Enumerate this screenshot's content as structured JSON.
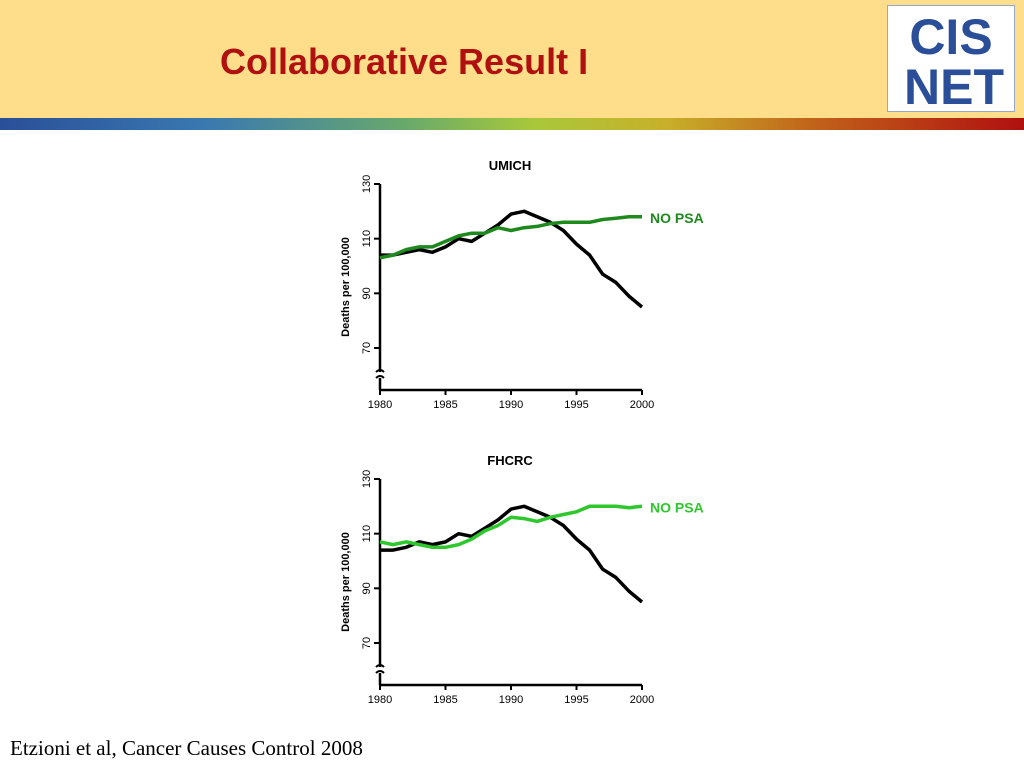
{
  "slide": {
    "title": "Collaborative Result I",
    "citation": "Etzioni et al, Cancer Causes Control 2008",
    "logo": {
      "line1": "CIS",
      "line2": "NET",
      "color": "#2a4f98"
    }
  },
  "chart_data": [
    {
      "type": "line",
      "title": "UMICH",
      "ylabel": "Deaths per 100,000",
      "xlabel": "",
      "xlim": [
        1980,
        2000
      ],
      "ylim": [
        60,
        130
      ],
      "xticks": [
        1980,
        1985,
        1990,
        1995,
        2000
      ],
      "yticks": [
        70,
        90,
        110,
        130
      ],
      "grid": false,
      "series": [
        {
          "color": "#000000",
          "x": [
            1980,
            1981,
            1982,
            1983,
            1984,
            1985,
            1986,
            1987,
            1988,
            1989,
            1990,
            1991,
            1992,
            1993,
            1994,
            1995,
            1996,
            1997,
            1998,
            1999,
            2000
          ],
          "y": [
            104,
            104,
            105,
            106,
            105,
            107,
            110,
            109,
            112,
            115,
            119,
            120,
            118,
            116,
            113,
            108,
            104,
            97,
            94,
            89,
            85
          ]
        },
        {
          "name": "NO PSA",
          "color": "#1e8a1e",
          "x": [
            1980,
            1981,
            1982,
            1983,
            1984,
            1985,
            1986,
            1987,
            1988,
            1989,
            1990,
            1991,
            1992,
            1993,
            1994,
            1995,
            1996,
            1997,
            1998,
            1999,
            2000
          ],
          "y": [
            103,
            104,
            106,
            107,
            107,
            109,
            111,
            112,
            112,
            114,
            113,
            114,
            114.5,
            115.5,
            116,
            116,
            116,
            117,
            117.5,
            118,
            118
          ]
        }
      ]
    },
    {
      "type": "line",
      "title": "FHCRC",
      "ylabel": "Deaths per 100,000",
      "xlabel": "",
      "xlim": [
        1980,
        2000
      ],
      "ylim": [
        60,
        130
      ],
      "xticks": [
        1980,
        1985,
        1990,
        1995,
        2000
      ],
      "yticks": [
        70,
        90,
        110,
        130
      ],
      "grid": false,
      "series": [
        {
          "color": "#000000",
          "x": [
            1980,
            1981,
            1982,
            1983,
            1984,
            1985,
            1986,
            1987,
            1988,
            1989,
            1990,
            1991,
            1992,
            1993,
            1994,
            1995,
            1996,
            1997,
            1998,
            1999,
            2000
          ],
          "y": [
            104,
            104,
            105,
            107,
            106,
            107,
            110,
            109,
            112,
            115,
            119,
            120,
            118,
            116,
            113,
            108,
            104,
            97,
            94,
            89,
            85
          ]
        },
        {
          "name": "NO PSA",
          "color": "#2ec82e",
          "x": [
            1980,
            1981,
            1982,
            1983,
            1984,
            1985,
            1986,
            1987,
            1988,
            1989,
            1990,
            1991,
            1992,
            1993,
            1994,
            1995,
            1996,
            1997,
            1998,
            1999,
            2000
          ],
          "y": [
            107,
            106,
            107,
            106,
            105,
            105,
            106,
            108,
            111,
            113,
            116,
            115.5,
            114.5,
            116,
            117,
            118,
            120,
            120,
            120,
            119.5,
            120
          ]
        }
      ]
    }
  ]
}
